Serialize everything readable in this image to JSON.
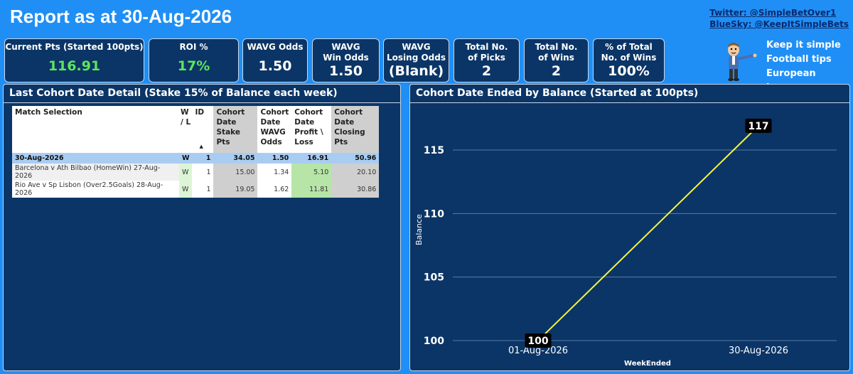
{
  "header": {
    "title": "Report as at 30-Aug-2026",
    "twitter": "Twitter: @SimpleBetOver1",
    "bluesky": "BlueSky: @KeepItSimpleBets"
  },
  "cards": [
    {
      "label": "Current Pts (Started 100pts)",
      "value": "116.91",
      "accent": "#5ce65c"
    },
    {
      "label": "ROI %",
      "value": "17%",
      "accent": "#5ce65c"
    },
    {
      "label": "WAVG Odds",
      "value": "1.50"
    },
    {
      "label": "WAVG Win Odds",
      "value": "1.50"
    },
    {
      "label": "WAVG Losing Odds",
      "value": "(Blank)"
    },
    {
      "label": "Total No. of Picks",
      "value": "2"
    },
    {
      "label": "Total No. of Wins",
      "value": "2"
    },
    {
      "label": "% of Total No. of Wins",
      "value": "100%"
    }
  ],
  "tagline": [
    "Keep it simple",
    "Football tips",
    "European leagues"
  ],
  "mascot_icon": "cartoon-man-pointing-icon",
  "left_panel": {
    "title": "Last Cohort Date Detail (Stake 15% of Balance each week)",
    "columns": [
      "Match Selection",
      "W / L",
      "ID",
      "Cohort Date Stake Pts",
      "Cohort Date WAVG Odds",
      "Cohort Date Profit \\ Loss",
      "Cohort Date Closing Pts"
    ],
    "total_row": [
      "30-Aug-2026",
      "W",
      "1",
      "34.05",
      "1.50",
      "16.91",
      "50.96"
    ],
    "rows": [
      [
        "Barcelona v Ath Bilbao (HomeWin) 27-Aug-2026",
        "W",
        "1",
        "15.00",
        "1.34",
        "5.10",
        "20.10"
      ],
      [
        "Rio Ave v Sp Lisbon (Over2.5Goals) 28-Aug-2026",
        "W",
        "1",
        "19.05",
        "1.62",
        "11.81",
        "30.86"
      ]
    ]
  },
  "right_panel": {
    "title": "Cohort Date Ended by Balance (Started at 100pts)"
  },
  "chart_data": {
    "type": "line",
    "title": "Cohort Date Ended by Balance (Started at 100pts)",
    "xlabel": "WeekEnded",
    "ylabel": "Balance",
    "x": [
      "01-Aug-2026",
      "30-Aug-2026"
    ],
    "series": [
      {
        "values": [
          100,
          116.91
        ],
        "labels": [
          "100",
          "117"
        ]
      }
    ],
    "yticks": [
      "100",
      "105",
      "110",
      "115"
    ],
    "ylim": [
      100,
      117
    ],
    "grid": true,
    "line_color": "#f5f542"
  }
}
